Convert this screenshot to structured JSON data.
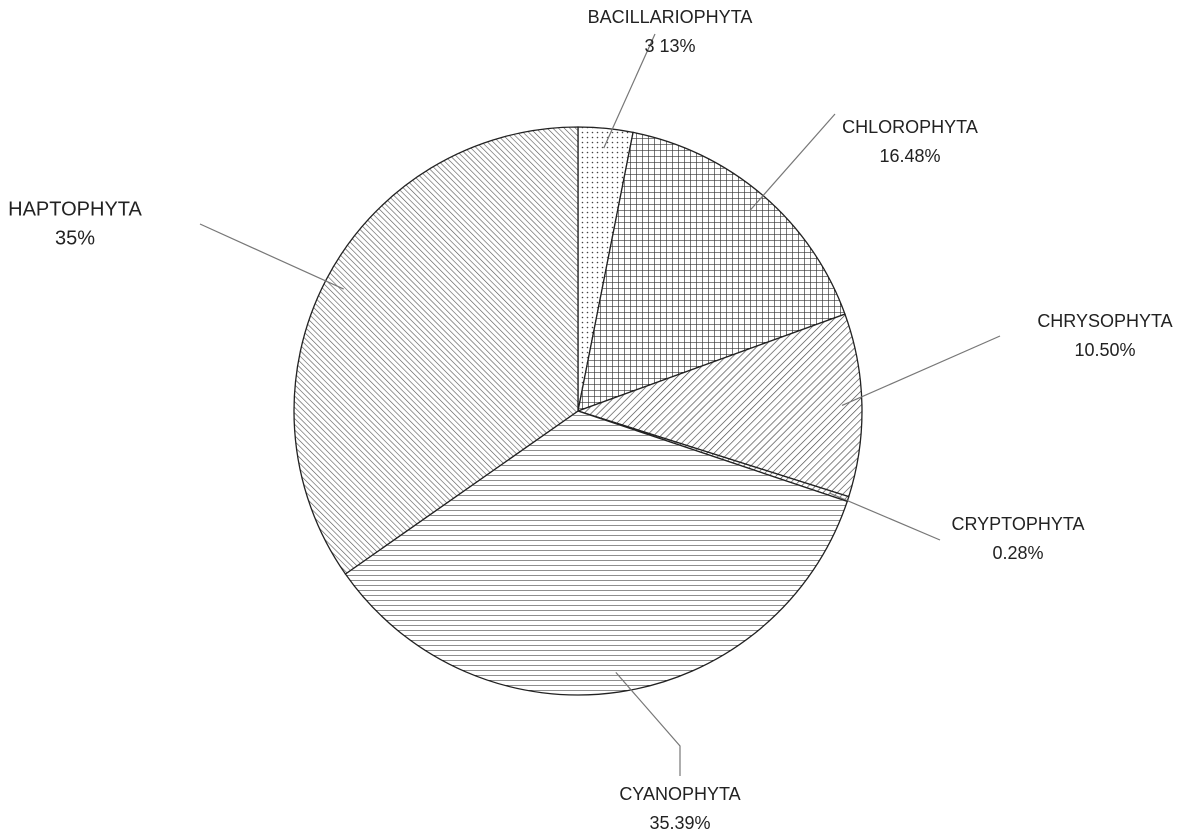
{
  "chart_data": {
    "type": "pie",
    "categories": [
      "BACILLARIOPHYTA",
      "CHLOROPHYTA",
      "CHRYSOPHYTA",
      "CRYPTOPHYTA",
      "CYANOPHYTA",
      "HAPTOPHYTA"
    ],
    "values": [
      3.13,
      16.48,
      10.5,
      0.28,
      35.39,
      35
    ],
    "value_labels": [
      "3 13%",
      "16.48%",
      "10.50%",
      "0.28%",
      "35.39%",
      "35%"
    ],
    "fill_patterns": [
      "dots",
      "grid",
      "diagonal-down",
      "diagonal-down",
      "horizontal",
      "diagonal-up"
    ]
  }
}
